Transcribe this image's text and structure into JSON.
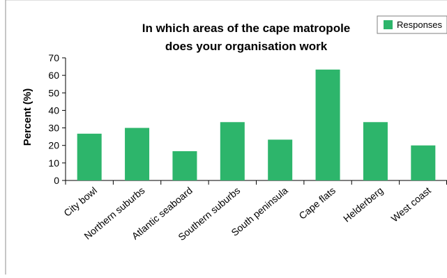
{
  "chart_data": {
    "type": "bar",
    "title_lines": [
      "In which areas of the cape matropole",
      "does your organisation work"
    ],
    "xlabel": "",
    "ylabel": "Percent (%)",
    "ylim": [
      0,
      70
    ],
    "yticks": [
      0,
      10,
      20,
      30,
      40,
      50,
      60,
      70
    ],
    "grid": false,
    "legend_position": "top-right",
    "categories": [
      "City bowl",
      "Northern suburbs",
      "Atlantic seaboard",
      "Southern suburbs",
      "South peninsula",
      "Cape flats",
      "Helderberg",
      "West coast"
    ],
    "series": [
      {
        "name": "Responses",
        "color": "#2db56b",
        "values": [
          26.7,
          30,
          16.7,
          33.3,
          23.3,
          63.3,
          33.3,
          20
        ]
      }
    ]
  }
}
